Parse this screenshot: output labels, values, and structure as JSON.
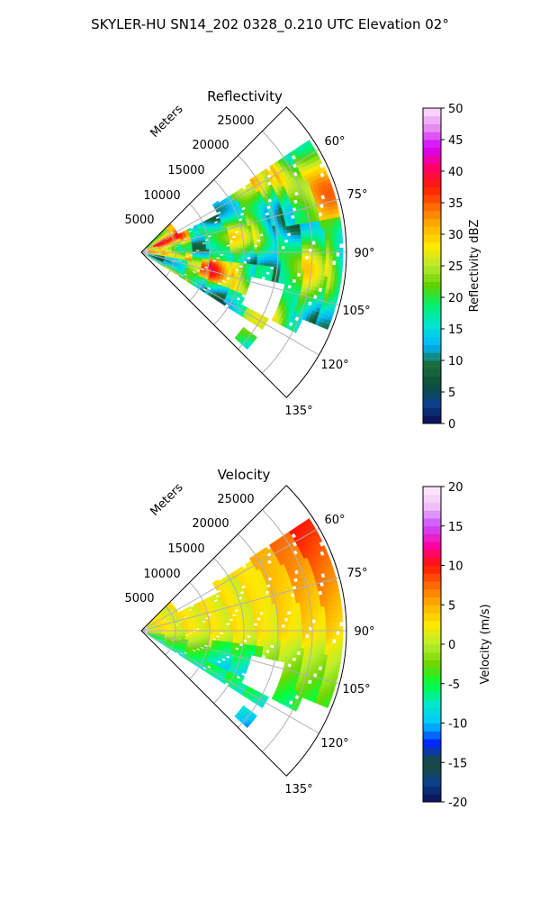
{
  "suptitle": "SKYLER-HU  SN14_202  0328_0.210 UTC Elevation 02°",
  "colors": {
    "frame": "#000000",
    "grid": "#b0b0b0",
    "refl_scale": [
      "#0d0d54",
      "#0a3f8a",
      "#0b4f3a",
      "#1a6e3c",
      "#00b8ff",
      "#00e5d0",
      "#00f070",
      "#5fd300",
      "#b8e830",
      "#ffe800",
      "#ffb400",
      "#ff6a00",
      "#ff1b00",
      "#ff0066",
      "#d400ff",
      "#e58cf0",
      "#ffe2ff"
    ],
    "vel_scale": [
      "#0d0d54",
      "#0a3f8a",
      "#1a4d30",
      "#0028ff",
      "#00c8ff",
      "#00e8c8",
      "#00ff3a",
      "#6ed600",
      "#b9ee2e",
      "#ffe800",
      "#ffb000",
      "#ff6a00",
      "#ff1500",
      "#ff00a0",
      "#c84cff",
      "#f0c0f6",
      "#ffeefe"
    ]
  },
  "chart_data": [
    {
      "type": "heatmap",
      "subtype": "radar-sector-ppi",
      "title": "Reflectivity",
      "r_axis_label": "Meters",
      "r_ticks": [
        5000,
        10000,
        15000,
        20000,
        25000
      ],
      "r_max": 30000,
      "theta_ticks": [
        "60°",
        "75°",
        "90°",
        "105°",
        "120°",
        "135°"
      ],
      "theta_range_deg": [
        45,
        135
      ],
      "colorbar": {
        "label": "Reflectivity dBZ",
        "range": [
          0,
          50
        ],
        "ticks": [
          "0",
          "5",
          "10",
          "15",
          "20",
          "25",
          "30",
          "35",
          "40",
          "45",
          "50"
        ]
      },
      "grid": true
    },
    {
      "type": "heatmap",
      "subtype": "radar-sector-ppi",
      "title": "Velocity",
      "r_axis_label": "Meters",
      "r_ticks": [
        5000,
        10000,
        15000,
        20000,
        25000
      ],
      "r_max": 30000,
      "theta_ticks": [
        "60°",
        "75°",
        "90°",
        "105°",
        "120°",
        "135°"
      ],
      "theta_range_deg": [
        45,
        135
      ],
      "colorbar": {
        "label": "Velocity (m/s)",
        "range": [
          -20,
          20
        ],
        "ticks": [
          "-20",
          "-15",
          "-10",
          "-5",
          "0",
          "5",
          "10",
          "15",
          "20"
        ]
      },
      "grid": true
    }
  ]
}
